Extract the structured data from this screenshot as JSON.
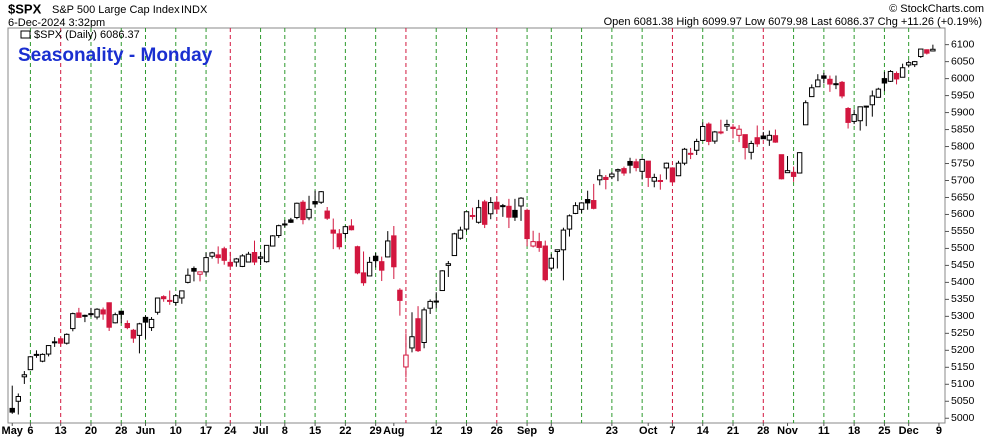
{
  "chart_data": {
    "type": "candlestick",
    "symbol": "$SPX",
    "name": "S&P 500 Large Cap Index",
    "exchange": "INDX",
    "date": "6-Dec-2024 3:32pm",
    "copyright": "© StockCharts.com",
    "quote": "Open 6081.38  High 6099.97  Low 6079.98  Last 6086.37  Chg +11.26 (+0.19%)",
    "legend": "$SPX (Daily) 6086.37",
    "title": "Seasonality - Monday",
    "up_color": "#000000",
    "down_color": "#d2173f",
    "open": [
      5029,
      5050,
      5122,
      5143,
      5188,
      5168,
      5189,
      5225,
      5234,
      5221,
      5264,
      5310,
      5302,
      5305,
      5298,
      5319,
      5340,
      5281,
      5315,
      5279,
      5259,
      5244,
      5297,
      5267,
      5312,
      5358,
      5344,
      5341,
      5354,
      5400,
      5441,
      5424,
      5431,
      5477,
      5481,
      5499,
      5459,
      5460,
      5447,
      5460,
      5488,
      5471,
      5461,
      5507,
      5538,
      5572,
      5584,
      5591,
      5636,
      5590,
      5638,
      5636,
      5610,
      5554,
      5543,
      5544,
      5566,
      5505,
      5428,
      5419,
      5477,
      5461,
      5475,
      5537,
      5377,
      5151,
      5207,
      5293,
      5223,
      5324,
      5345,
      5376,
      5450,
      5479,
      5530,
      5557,
      5596,
      5577,
      5637,
      5602,
      5636,
      5625,
      5624,
      5612,
      5625,
      5612,
      5507,
      5520,
      5507,
      5442,
      5491,
      5496,
      5557,
      5603,
      5615,
      5644,
      5641,
      5702,
      5709,
      5711,
      5728,
      5735,
      5756,
      5755,
      5727,
      5757,
      5698,
      5698,
      5737,
      5737,
      5714,
      5751,
      5778,
      5789,
      5818,
      5866,
      5816,
      5843,
      5860,
      5857,
      5833,
      5835,
      5783,
      5826,
      5831,
      5819,
      5832,
      5776,
      5723,
      5724,
      5722,
      5864,
      5947,
      5976,
      6008,
      5998,
      5985,
      5989,
      5912,
      5874,
      5876,
      5919,
      5923,
      5945,
      6000,
      5992,
      6015,
      6004,
      6040,
      6041,
      6065,
      6085,
      6081.38
    ],
    "high": [
      5096,
      5073,
      5139,
      5183,
      5200,
      5191,
      5215,
      5239,
      5238,
      5250,
      5311,
      5325,
      5305,
      5325,
      5324,
      5326,
      5341,
      5311,
      5315,
      5288,
      5263,
      5281,
      5303,
      5298,
      5354,
      5362,
      5376,
      5365,
      5376,
      5441,
      5447,
      5432,
      5488,
      5490,
      5506,
      5505,
      5490,
      5472,
      5483,
      5490,
      5523,
      5490,
      5509,
      5539,
      5570,
      5584,
      5590,
      5635,
      5642,
      5655,
      5670,
      5669,
      5622,
      5588,
      5557,
      5567,
      5586,
      5508,
      5491,
      5475,
      5487,
      5476,
      5551,
      5566,
      5383,
      5250,
      5312,
      5330,
      5326,
      5350,
      5371,
      5436,
      5463,
      5546,
      5564,
      5608,
      5620,
      5643,
      5643,
      5651,
      5651,
      5631,
      5646,
      5646,
      5651,
      5617,
      5552,
      5546,
      5523,
      5484,
      5497,
      5561,
      5600,
      5636,
      5636,
      5670,
      5690,
      5733,
      5716,
      5725,
      5735,
      5741,
      5767,
      5764,
      5765,
      5757,
      5720,
      5718,
      5753,
      5739,
      5758,
      5796,
      5796,
      5823,
      5871,
      5871,
      5846,
      5879,
      5879,
      5866,
      5863,
      5835,
      5817,
      5862,
      5843,
      5847,
      5850,
      5776,
      5772,
      5741,
      5783,
      5936,
      5983,
      6013,
      6017,
      6009,
      6009,
      5993,
      5916,
      5909,
      5917,
      5920,
      5965,
      5973,
      6020,
      6025,
      6021,
      6044,
      6053,
      6052,
      6087,
      6086,
      6099.97
    ],
    "low": [
      5013,
      5011,
      5101,
      5142,
      5178,
      5165,
      5182,
      5210,
      5211,
      5217,
      5256,
      5296,
      5283,
      5298,
      5291,
      5290,
      5257,
      5279,
      5280,
      5262,
      5222,
      5191,
      5234,
      5257,
      5305,
      5343,
      5334,
      5331,
      5337,
      5397,
      5403,
      5403,
      5420,
      5470,
      5455,
      5452,
      5447,
      5446,
      5445,
      5459,
      5451,
      5451,
      5458,
      5507,
      5531,
      5562,
      5575,
      5586,
      5571,
      5583,
      5620,
      5631,
      5584,
      5498,
      5497,
      5530,
      5553,
      5424,
      5390,
      5419,
      5444,
      5404,
      5474,
      5410,
      5302,
      5120,
      5194,
      5195,
      5206,
      5307,
      5324,
      5376,
      5416,
      5479,
      5526,
      5550,
      5585,
      5573,
      5560,
      5586,
      5602,
      5593,
      5560,
      5581,
      5581,
      5506,
      5503,
      5490,
      5403,
      5434,
      5441,
      5406,
      5535,
      5601,
      5604,
      5614,
      5615,
      5686,
      5674,
      5704,
      5698,
      5714,
      5721,
      5727,
      5703,
      5681,
      5680,
      5673,
      5703,
      5694,
      5713,
      5745,
      5763,
      5775,
      5817,
      5804,
      5808,
      5836,
      5846,
      5824,
      5813,
      5762,
      5762,
      5799,
      5822,
      5802,
      5811,
      5703,
      5723,
      5696,
      5722,
      5864,
      5947,
      5976,
      5986,
      5961,
      5969,
      5942,
      5853,
      5866,
      5847,
      5860,
      5888,
      5944,
      5963,
      5990,
      5983,
      6004,
      6033,
      6034,
      6061,
      6071,
      6079.98
    ],
    "close": [
      5018,
      5064,
      5128,
      5181,
      5187,
      5188,
      5214,
      5223,
      5221,
      5247,
      5308,
      5297,
      5303,
      5308,
      5321,
      5307,
      5268,
      5305,
      5306,
      5267,
      5236,
      5278,
      5283,
      5291,
      5354,
      5352,
      5347,
      5361,
      5375,
      5421,
      5433,
      5431,
      5473,
      5487,
      5473,
      5465,
      5448,
      5469,
      5478,
      5483,
      5460,
      5475,
      5509,
      5537,
      5567,
      5572,
      5577,
      5633,
      5585,
      5615,
      5631,
      5667,
      5589,
      5545,
      5505,
      5564,
      5555,
      5428,
      5399,
      5459,
      5464,
      5436,
      5522,
      5446,
      5347,
      5186,
      5240,
      5199,
      5319,
      5344,
      5344,
      5434,
      5455,
      5543,
      5554,
      5608,
      5597,
      5620,
      5571,
      5635,
      5616,
      5626,
      5592,
      5592,
      5648,
      5529,
      5520,
      5503,
      5408,
      5471,
      5496,
      5554,
      5596,
      5626,
      5634,
      5634,
      5618,
      5714,
      5703,
      5719,
      5732,
      5722,
      5745,
      5738,
      5762,
      5709,
      5709,
      5700,
      5751,
      5696,
      5751,
      5792,
      5780,
      5815,
      5859,
      5815,
      5843,
      5841,
      5865,
      5853,
      5851,
      5797,
      5809,
      5808,
      5823,
      5833,
      5813,
      5705,
      5729,
      5712,
      5782,
      5929,
      5973,
      5996,
      6001,
      5984,
      5985,
      5949,
      5871,
      5894,
      5917,
      5917,
      5949,
      5969,
      5987,
      6021,
      5999,
      6032,
      6047,
      6050,
      6087,
      6075,
      6086.37
    ],
    "xlim": [
      -0.7,
      154
    ],
    "xticks": [
      {
        "value": 0,
        "label": "May"
      },
      {
        "value": 3,
        "label": "6"
      },
      {
        "value": 8,
        "label": "13"
      },
      {
        "value": 13,
        "label": "20"
      },
      {
        "value": 18,
        "label": "28"
      },
      {
        "value": 22,
        "label": "Jun"
      },
      {
        "value": 27,
        "label": "10"
      },
      {
        "value": 32,
        "label": "17"
      },
      {
        "value": 36,
        "label": "24"
      },
      {
        "value": 41,
        "label": "Jul"
      },
      {
        "value": 45,
        "label": "8"
      },
      {
        "value": 50,
        "label": "15"
      },
      {
        "value": 55,
        "label": "22"
      },
      {
        "value": 60,
        "label": "29"
      },
      {
        "value": 63,
        "label": "Aug"
      },
      {
        "value": 70,
        "label": "12"
      },
      {
        "value": 75,
        "label": "19"
      },
      {
        "value": 80,
        "label": "26"
      },
      {
        "value": 85,
        "label": "Sep"
      },
      {
        "value": 89,
        "label": "9"
      },
      {
        "value": 99,
        "label": "23"
      },
      {
        "value": 105,
        "label": "Oct"
      },
      {
        "value": 109,
        "label": "7"
      },
      {
        "value": 114,
        "label": "14"
      },
      {
        "value": 119,
        "label": "21"
      },
      {
        "value": 124,
        "label": "28"
      },
      {
        "value": 128,
        "label": "Nov"
      },
      {
        "value": 134,
        "label": "11"
      },
      {
        "value": 139,
        "label": "18"
      },
      {
        "value": 144,
        "label": "25"
      },
      {
        "value": 148,
        "label": "Dec"
      },
      {
        "value": 153,
        "label": "9"
      }
    ],
    "xgrid": [
      {
        "value": 3,
        "color": "#2e9a2e"
      },
      {
        "value": 8,
        "color": "#d2173f"
      },
      {
        "value": 13,
        "color": "#2e9a2e"
      },
      {
        "value": 18,
        "color": "#2e9a2e"
      },
      {
        "value": 22,
        "color": "#2e9a2e"
      },
      {
        "value": 27,
        "color": "#2e9a2e"
      },
      {
        "value": 32,
        "color": "#2e9a2e"
      },
      {
        "value": 36,
        "color": "#d2173f"
      },
      {
        "value": 41,
        "color": "#2e9a2e"
      },
      {
        "value": 45,
        "color": "#2e9a2e"
      },
      {
        "value": 50,
        "color": "#2e9a2e"
      },
      {
        "value": 55,
        "color": "#2e9a2e"
      },
      {
        "value": 60,
        "color": "#2e9a2e"
      },
      {
        "value": 65,
        "color": "#d2173f"
      },
      {
        "value": 70,
        "color": "#2e9a2e"
      },
      {
        "value": 75,
        "color": "#2e9a2e"
      },
      {
        "value": 80,
        "color": "#d2173f"
      },
      {
        "value": 85,
        "color": "#2e9a2e"
      },
      {
        "value": 89,
        "color": "#2e9a2e"
      },
      {
        "value": 94,
        "color": "#2e9a2e"
      },
      {
        "value": 99,
        "color": "#2e9a2e"
      },
      {
        "value": 104,
        "color": "#2e9a2e"
      },
      {
        "value": 109,
        "color": "#d2173f"
      },
      {
        "value": 114,
        "color": "#2e9a2e"
      },
      {
        "value": 119,
        "color": "#2e9a2e"
      },
      {
        "value": 124,
        "color": "#d2173f"
      },
      {
        "value": 129,
        "color": "#2e9a2e"
      },
      {
        "value": 134,
        "color": "#2e9a2e"
      },
      {
        "value": 139,
        "color": "#2e9a2e"
      },
      {
        "value": 144,
        "color": "#2e9a2e"
      },
      {
        "value": 148,
        "color": "#2e9a2e"
      }
    ],
    "ylim": [
      4986,
      6149
    ],
    "yticks": [
      5000,
      5050,
      5100,
      5150,
      5200,
      5250,
      5300,
      5350,
      5400,
      5450,
      5500,
      5550,
      5600,
      5650,
      5700,
      5750,
      5800,
      5850,
      5900,
      5950,
      6000,
      6050,
      6100
    ]
  }
}
